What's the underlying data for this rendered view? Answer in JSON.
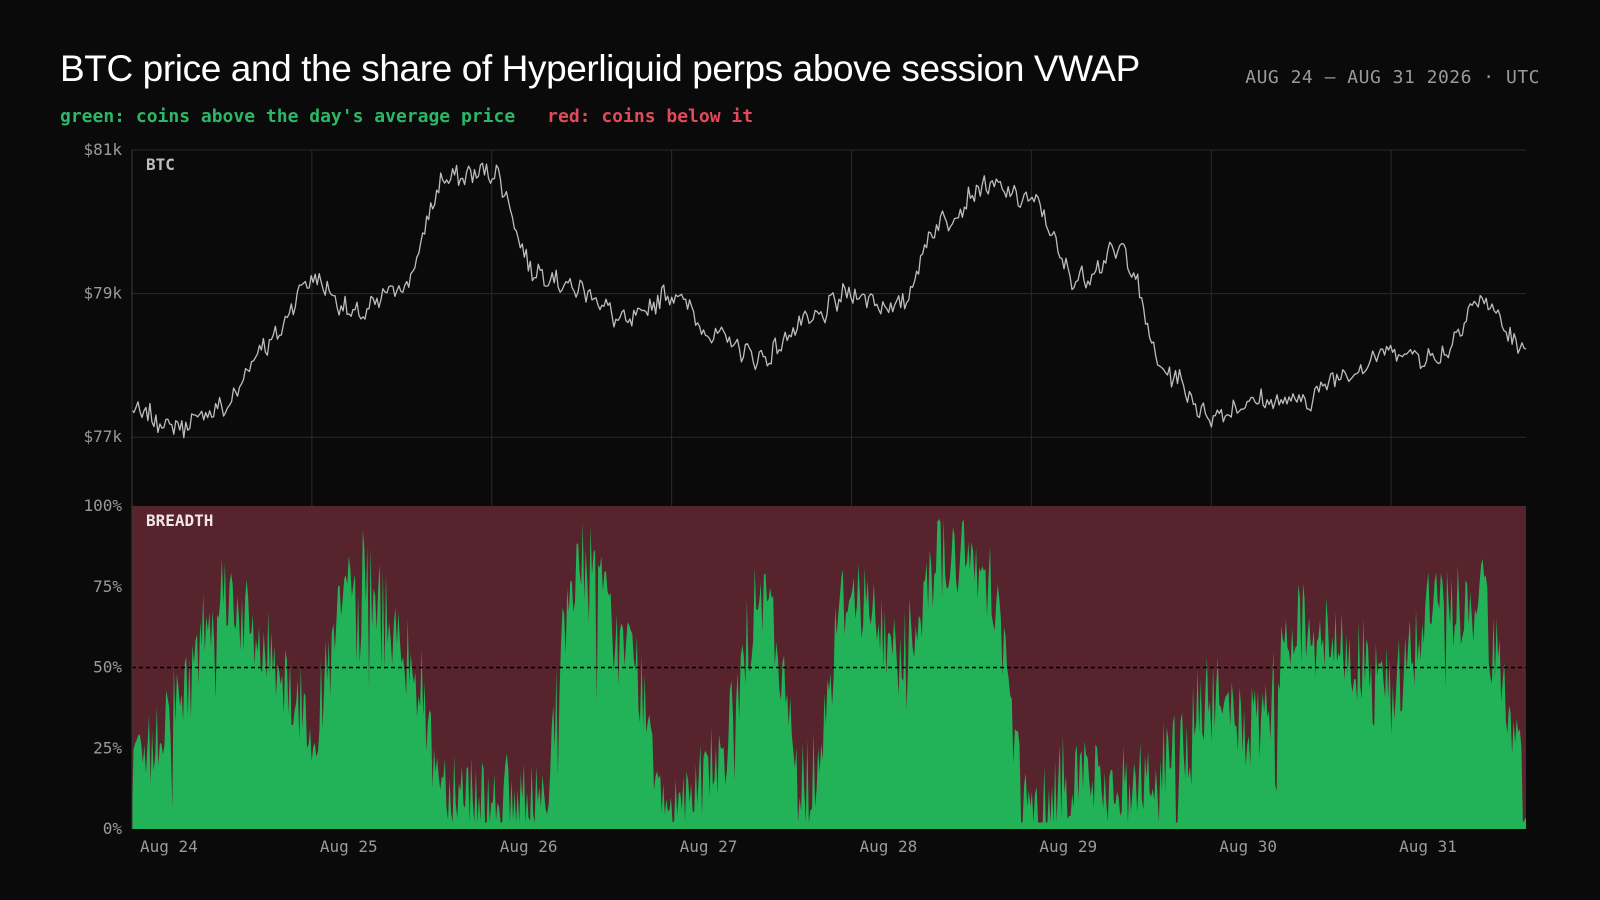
{
  "header": {
    "title": "BTC price and the share of Hyperliquid perps above session VWAP",
    "date_range": "AUG 24 – AUG 31 2026 · UTC",
    "legend_green": "green: coins above the day's average price",
    "legend_red": "red: coins below it"
  },
  "colors": {
    "background": "#0a0a0a",
    "price_line": "#bdbdbd",
    "breadth_above": "#22b257",
    "breadth_below": "#57232c",
    "grid": "#2a2a2a",
    "legend_green": "#2bb866",
    "legend_red": "#e24a5b"
  },
  "chart_data": [
    {
      "type": "line",
      "panel_label": "BTC",
      "ylim": [
        76000,
        81000
      ],
      "y_ticks": [
        77000,
        79000,
        81000
      ],
      "y_tick_labels": [
        "$77k",
        "$79k",
        "$81k"
      ],
      "x": [
        0,
        0.25,
        0.5,
        0.75,
        1,
        1.25,
        1.5,
        1.75,
        2,
        2.25,
        2.5,
        2.75,
        3,
        3.25,
        3.5,
        3.75,
        4,
        4.25,
        4.5,
        4.75,
        5,
        5.25,
        5.5,
        5.75,
        6,
        6.25,
        6.5,
        6.75,
        7,
        7.25,
        7.5,
        7.75
      ],
      "x_unit": "days since Aug 24 00:00 UTC",
      "values": [
        77350,
        77150,
        77400,
        78300,
        79200,
        78700,
        79100,
        80600,
        80700,
        79300,
        79050,
        78600,
        79000,
        78400,
        78100,
        78600,
        79000,
        78800,
        80000,
        80500,
        80300,
        79200,
        79600,
        77900,
        77300,
        77500,
        77500,
        77900,
        78200,
        78100,
        78900,
        78200
      ],
      "x_tick_labels": [
        "Aug 24",
        "Aug 25",
        "Aug 26",
        "Aug 27",
        "Aug 28",
        "Aug 29",
        "Aug 30",
        "Aug 31"
      ]
    },
    {
      "type": "area",
      "panel_label": "BREADTH",
      "ylim": [
        0,
        100
      ],
      "y_ticks": [
        0,
        25,
        50,
        75,
        100
      ],
      "y_tick_labels": [
        "0%",
        "25%",
        "50%",
        "75%",
        "100%"
      ],
      "reference_line": 50,
      "x": [
        0,
        0.25,
        0.5,
        0.75,
        1,
        1.25,
        1.5,
        1.75,
        2,
        2.25,
        2.5,
        2.75,
        3,
        3.25,
        3.5,
        3.75,
        4,
        4.25,
        4.5,
        4.75,
        5,
        5.25,
        5.5,
        5.75,
        6,
        6.25,
        6.5,
        6.75,
        7,
        7.25,
        7.5,
        7.75
      ],
      "x_unit": "days since Aug 24 00:00 UTC",
      "values": [
        15,
        40,
        75,
        55,
        35,
        80,
        60,
        15,
        10,
        8,
        85,
        55,
        10,
        20,
        70,
        15,
        75,
        55,
        85,
        80,
        5,
        18,
        12,
        20,
        40,
        30,
        65,
        55,
        45,
        70,
        70,
        15
      ],
      "x_tick_labels": [
        "Aug 24",
        "Aug 25",
        "Aug 26",
        "Aug 27",
        "Aug 28",
        "Aug 29",
        "Aug 30",
        "Aug 31"
      ]
    }
  ]
}
